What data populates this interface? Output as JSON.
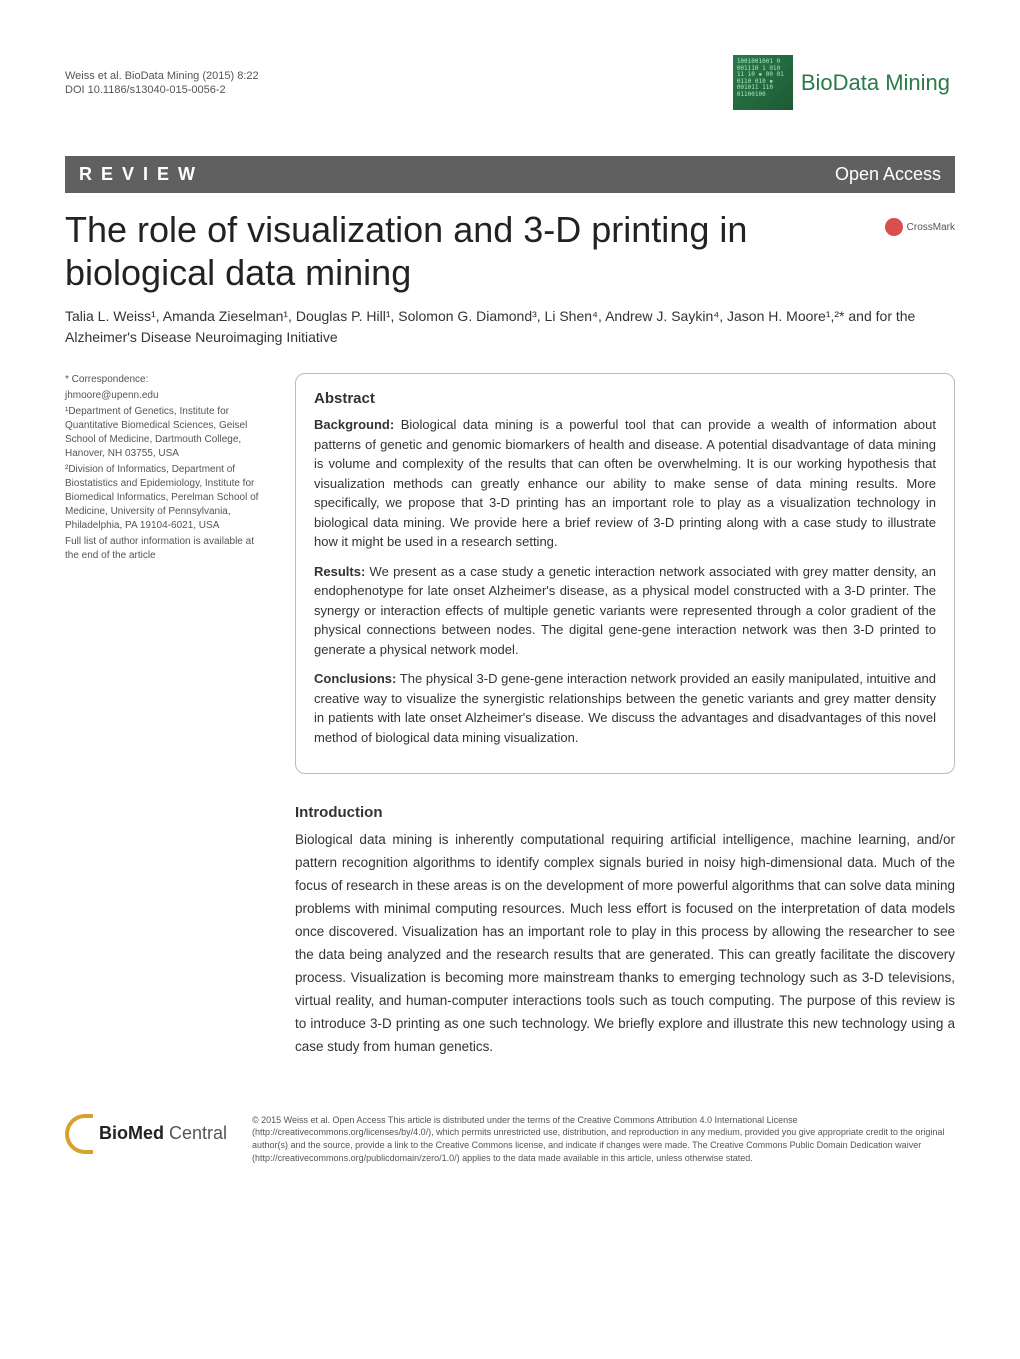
{
  "running_head": {
    "citation": "Weiss et al. BioData Mining  (2015) 8:22",
    "doi": "DOI 10.1186/s13040-015-0056-2"
  },
  "journal": {
    "logo_text": "1001001001  0\n001110  1\n010     11\n10   ▪  00\n01    0110\n010   ▪ 001011\n110  01100100",
    "name": "BioData Mining"
  },
  "review_bar": {
    "left": "R E V I E W",
    "right": "Open Access"
  },
  "title": "The role of visualization and 3-D printing in biological data mining",
  "crossmark_label": "CrossMark",
  "authors": "Talia L. Weiss¹, Amanda Zieselman¹, Douglas P. Hill¹, Solomon G. Diamond³, Li Shen⁴, Andrew J. Saykin⁴, Jason H. Moore¹,²* and for the Alzheimer's Disease Neuroimaging Initiative",
  "correspondence": {
    "label": "* Correspondence:",
    "email": "jhmoore@upenn.edu",
    "aff1": "¹Department of Genetics, Institute for Quantitative Biomedical Sciences, Geisel School of Medicine, Dartmouth College, Hanover, NH 03755, USA",
    "aff2": "²Division of Informatics, Department of Biostatistics and Epidemiology, Institute for Biomedical Informatics, Perelman School of Medicine, University of Pennsylvania, Philadelphia, PA 19104-6021, USA",
    "note": "Full list of author information is available at the end of the article"
  },
  "abstract": {
    "heading": "Abstract",
    "background_label": "Background:",
    "background": " Biological data mining is a powerful tool that can provide a wealth of information about patterns of genetic and genomic biomarkers of health and disease. A potential disadvantage of data mining is volume and complexity of the results that can often be overwhelming. It is our working hypothesis that visualization methods can greatly enhance our ability to make sense of data mining results. More specifically, we propose that 3-D printing has an important role to play as a visualization technology in biological data mining. We provide here a brief review of 3-D printing along with a case study to illustrate how it might be used in a research setting.",
    "results_label": "Results:",
    "results": " We present as a case study a genetic interaction network associated with grey matter density, an endophenotype for late onset Alzheimer's disease, as a physical model constructed with a 3-D printer. The synergy or interaction effects of multiple genetic variants were represented through a color gradient of the physical connections between nodes. The digital gene-gene interaction network was then 3-D printed to generate a physical network model.",
    "conclusions_label": "Conclusions:",
    "conclusions": " The physical 3-D gene-gene interaction network provided an easily manipulated, intuitive and creative way to visualize the synergistic relationships between the genetic variants and grey matter density in patients with late onset Alzheimer's disease. We discuss the advantages and disadvantages of this novel method of biological data mining visualization."
  },
  "introduction": {
    "heading": "Introduction",
    "text": "Biological data mining is inherently computational requiring artificial intelligence, machine learning, and/or pattern recognition algorithms to identify complex signals buried in noisy high-dimensional data. Much of the focus of research in these areas is on the development of more powerful algorithms that can solve data mining problems with minimal computing resources. Much less effort is focused on the interpretation of data models once discovered. Visualization has an important role to play in this process by allowing the researcher to see the data being analyzed and the research results that are generated. This can greatly facilitate the discovery process. Visualization is becoming more mainstream thanks to emerging technology such as 3-D televisions, virtual reality, and human-computer interactions tools such as touch computing. The purpose of this review is to introduce 3-D printing as one such technology. We briefly explore and illustrate this new technology using a case study from human genetics."
  },
  "footer": {
    "bmc_bio": "Bio",
    "bmc_med": "Med",
    "bmc_central": " Central",
    "license": "© 2015 Weiss et al. Open Access This article is distributed under the terms of the Creative Commons Attribution 4.0 International License (http://creativecommons.org/licenses/by/4.0/), which permits unrestricted use, distribution, and reproduction in any medium, provided you give appropriate credit to the original author(s) and the source, provide a link to the Creative Commons license, and indicate if changes were made. The Creative Commons Public Domain Dedication waiver (http://creativecommons.org/publicdomain/zero/1.0/) applies to the data made available in this article, unless otherwise stated."
  },
  "colors": {
    "bar_bg": "#606060",
    "journal_green": "#2a7a4a",
    "crossmark_red": "#d94f4f",
    "bmc_gold": "#d8a030"
  }
}
